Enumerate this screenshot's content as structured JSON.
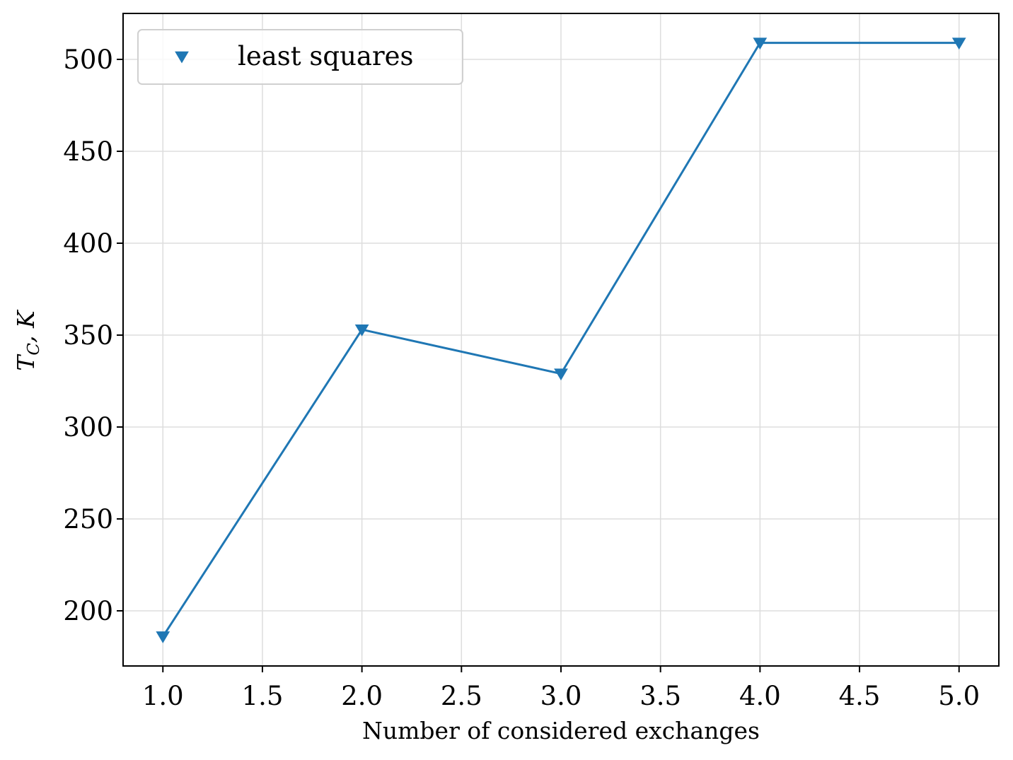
{
  "chart_data": {
    "type": "line",
    "xlabel": "Number of considered exchanges",
    "ylabel_main": "T",
    "ylabel_sub": "C",
    "ylabel_rest": ", K",
    "xlim": [
      0.8,
      5.2
    ],
    "ylim": [
      170,
      525
    ],
    "x_ticks": [
      1.0,
      1.5,
      2.0,
      2.5,
      3.0,
      3.5,
      4.0,
      4.5,
      5.0
    ],
    "x_tick_labels": [
      "1.0",
      "1.5",
      "2.0",
      "2.5",
      "3.0",
      "3.5",
      "4.0",
      "4.5",
      "5.0"
    ],
    "y_ticks": [
      200,
      250,
      300,
      350,
      400,
      450,
      500
    ],
    "y_tick_labels": [
      "200",
      "250",
      "300",
      "350",
      "400",
      "450",
      "500"
    ],
    "grid": true,
    "legend_position": "top-left",
    "series": [
      {
        "name": "least squares",
        "color": "#1f77b4",
        "marker": "triangle-down",
        "x": [
          1,
          2,
          3,
          4,
          5
        ],
        "y": [
          186,
          353,
          329,
          509,
          509
        ]
      }
    ]
  }
}
